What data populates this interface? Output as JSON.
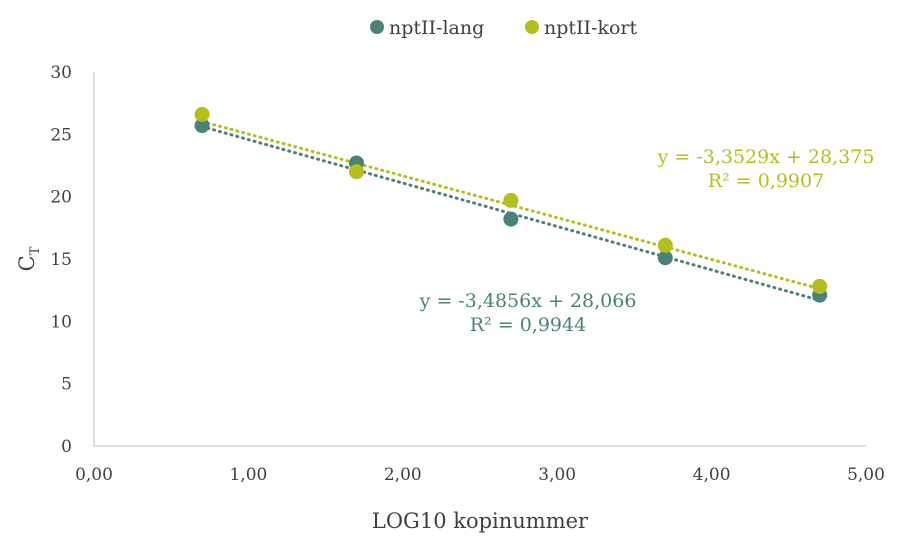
{
  "chart_data": {
    "type": "scatter",
    "xlabel": "LOG10 kopinummer",
    "ylabel_main": "C",
    "ylabel_sub": "T",
    "xlim": [
      0,
      5
    ],
    "ylim": [
      0,
      30
    ],
    "x_ticks": [
      "0,00",
      "1,00",
      "2,00",
      "3,00",
      "4,00",
      "5,00"
    ],
    "x_tick_values": [
      0,
      1,
      2,
      3,
      4,
      5
    ],
    "y_ticks": [
      "0",
      "5",
      "10",
      "15",
      "20",
      "25",
      "30"
    ],
    "y_tick_values": [
      0,
      5,
      10,
      15,
      20,
      25,
      30
    ],
    "grid": false,
    "legend_position": "top-center",
    "series": [
      {
        "name": "nptII-lang",
        "color": "#4a8178",
        "x": [
          0.7,
          1.7,
          2.7,
          3.7,
          4.7
        ],
        "y": [
          25.7,
          22.7,
          18.2,
          15.1,
          12.1
        ],
        "trendline": {
          "slope": -3.4856,
          "intercept": 28.066,
          "style": "dotted"
        },
        "equation": "y = -3,4856x + 28,066",
        "r2": "R² = 0,9944"
      },
      {
        "name": "nptII-kort",
        "color": "#b5be1a",
        "x": [
          0.7,
          1.7,
          2.7,
          3.7,
          4.7
        ],
        "y": [
          26.6,
          22.0,
          19.7,
          16.1,
          12.8
        ],
        "trendline": {
          "slope": -3.3529,
          "intercept": 28.375,
          "style": "dotted"
        },
        "equation": "y = -3,3529x + 28,375",
        "r2": "R² = 0,9907"
      }
    ]
  }
}
